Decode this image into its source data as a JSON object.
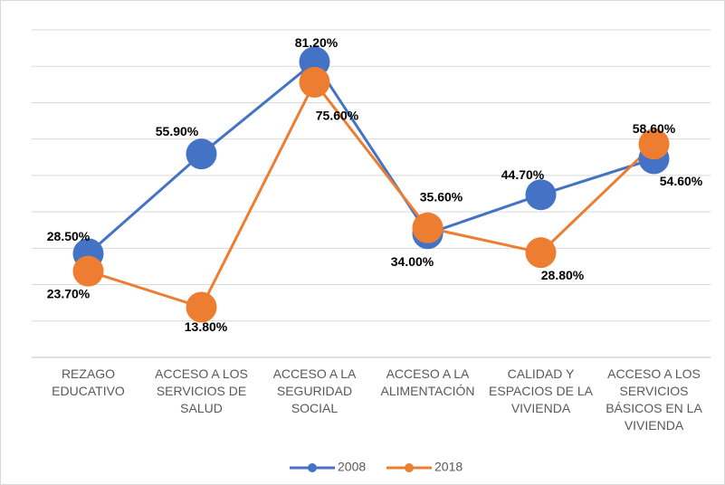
{
  "chart_data": {
    "type": "line",
    "categories": [
      "REZAGO EDUCATIVO",
      "ACCESO A LOS SERVICIOS DE SALUD",
      "ACCESO A LA SEGURIDAD SOCIAL",
      "ACCESO A LA ALIMENTACIÓN",
      "CALIDAD Y ESPACIOS DE LA VIVIENDA",
      "ACCESO A LOS SERVICIOS BÁSICOS EN LA VIVIENDA"
    ],
    "series": [
      {
        "name": "2008",
        "color": "#4472c4",
        "values": [
          28.5,
          55.9,
          81.2,
          34.0,
          44.7,
          54.6
        ],
        "value_labels": [
          "28.50%",
          "55.90%",
          "81.20%",
          "34.00%",
          "44.70%",
          "54.60%"
        ]
      },
      {
        "name": "2018",
        "color": "#ed7d31",
        "values": [
          23.7,
          13.8,
          75.6,
          35.6,
          28.8,
          58.6
        ],
        "value_labels": [
          "23.70%",
          "13.80%",
          "75.60%",
          "35.60%",
          "28.80%",
          "58.60%"
        ]
      }
    ],
    "ylim": [
      0,
      90
    ],
    "yticks": [
      0,
      10,
      20,
      30,
      40,
      50,
      60,
      70,
      80,
      90
    ],
    "grid": true,
    "legend": "bottom"
  }
}
